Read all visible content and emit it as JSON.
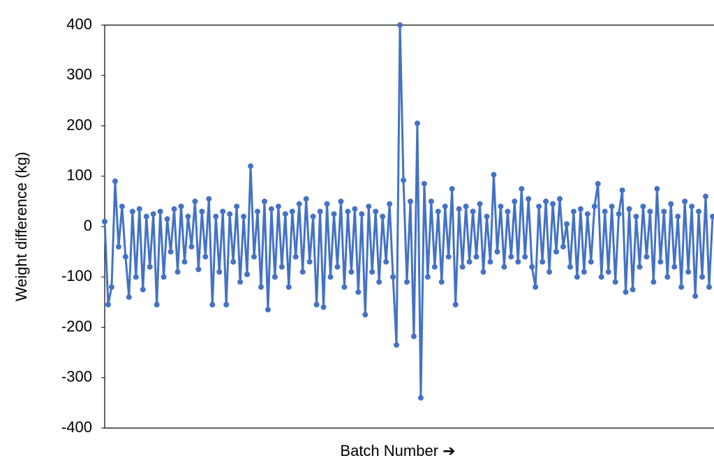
{
  "chart_data": {
    "type": "line",
    "y_label": "Weight difference (kg)",
    "x_label": "Batch Number ➔",
    "color": "#4472c4",
    "markers": true,
    "ylim": [
      -400,
      400
    ],
    "yticks": [
      -400,
      -300,
      -200,
      -100,
      0,
      100,
      200,
      300,
      400
    ],
    "values": [
      10,
      -155,
      -120,
      90,
      -40,
      40,
      -60,
      -140,
      30,
      -100,
      35,
      -125,
      20,
      -80,
      25,
      -155,
      30,
      -100,
      15,
      -50,
      35,
      -90,
      40,
      -70,
      20,
      -40,
      50,
      -85,
      30,
      -60,
      55,
      -155,
      20,
      -90,
      30,
      -155,
      25,
      -70,
      40,
      -110,
      20,
      -95,
      120,
      -60,
      30,
      -120,
      50,
      -165,
      35,
      -100,
      40,
      -80,
      25,
      -120,
      30,
      -60,
      45,
      -90,
      55,
      -70,
      20,
      -155,
      30,
      -160,
      45,
      -100,
      25,
      -80,
      50,
      -120,
      30,
      -90,
      35,
      -130,
      25,
      -175,
      40,
      -90,
      30,
      -110,
      20,
      -70,
      45,
      -100,
      -235,
      400,
      92,
      -110,
      50,
      -218,
      205,
      -340,
      85,
      -100,
      50,
      -80,
      30,
      -110,
      40,
      -60,
      75,
      -155,
      35,
      -80,
      40,
      -70,
      30,
      -60,
      45,
      -90,
      20,
      -70,
      103,
      -50,
      40,
      -80,
      30,
      -60,
      50,
      -70,
      75,
      -60,
      55,
      -80,
      -120,
      40,
      -70,
      50,
      -90,
      45,
      -50,
      55,
      -40,
      5,
      -80,
      30,
      -100,
      35,
      -90,
      25,
      -70,
      40,
      85,
      -100,
      30,
      -90,
      40,
      -110,
      25,
      72,
      -130,
      35,
      -125,
      20,
      -80,
      40,
      -60,
      30,
      -110,
      75,
      -70,
      30,
      -100,
      45,
      -80,
      20,
      -120,
      50,
      -90,
      40,
      -138,
      30,
      -100,
      60,
      -120,
      20
    ]
  }
}
